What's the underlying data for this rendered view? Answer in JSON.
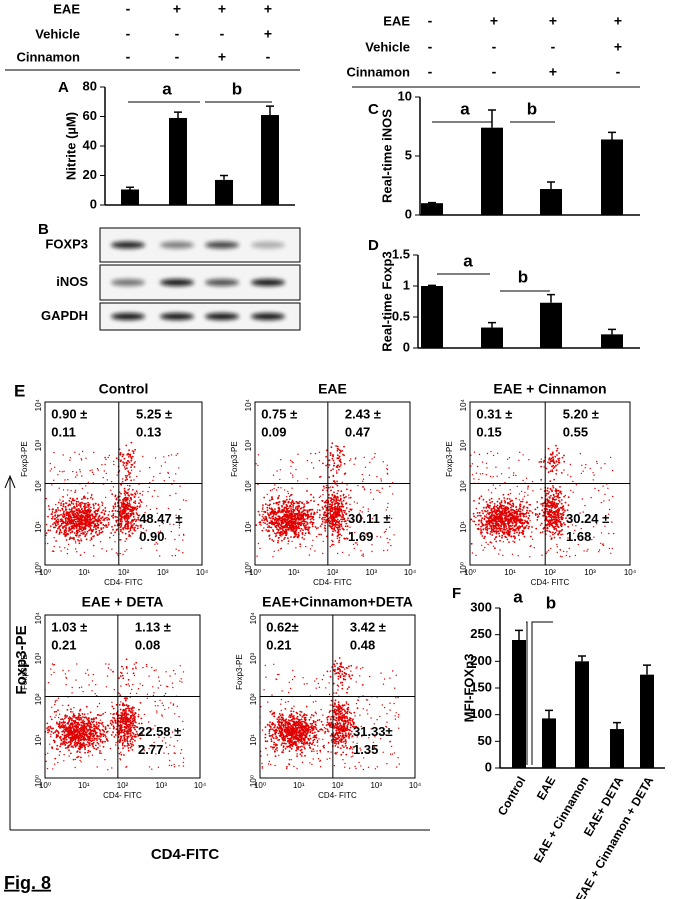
{
  "figure_label": "Fig. 8",
  "treatment_headers": [
    {
      "label": "EAE",
      "values": [
        "-",
        "+",
        "+",
        "+"
      ]
    },
    {
      "label": "Vehicle",
      "values": [
        "-",
        "-",
        "-",
        "+"
      ]
    },
    {
      "label": "Cinnamon",
      "values": [
        "-",
        "-",
        "+",
        "-"
      ]
    }
  ],
  "chart_data": [
    {
      "type": "bar",
      "panel": "A",
      "y_label": "Nitrite (µM)",
      "values": [
        10.5,
        59,
        17,
        61
      ],
      "errors": [
        1.5,
        4,
        3,
        6
      ],
      "color": "#000000",
      "ylim": [
        0,
        80
      ],
      "yticks": [
        0,
        20,
        40,
        60,
        80
      ],
      "annotations": [
        "a",
        "b"
      ]
    },
    {
      "type": "bar",
      "panel": "C",
      "y_label": "Real-time iNOS",
      "values": [
        1.0,
        7.4,
        2.2,
        6.4
      ],
      "errors": [
        0.05,
        1.5,
        0.6,
        0.6
      ],
      "color": "#000000",
      "ylim": [
        0,
        10
      ],
      "yticks": [
        0,
        5,
        10
      ],
      "annotations": [
        "a",
        "b"
      ]
    },
    {
      "type": "bar",
      "panel": "D",
      "y_label": "Real-time Foxp3",
      "values": [
        1.0,
        0.33,
        0.73,
        0.22
      ],
      "errors": [
        0.01,
        0.08,
        0.13,
        0.08
      ],
      "color": "#000000",
      "ylim": [
        0,
        1.5
      ],
      "yticks": [
        0,
        0.5,
        1,
        1.5
      ],
      "annotations": [
        "a",
        "b"
      ]
    },
    {
      "type": "bar",
      "panel": "F",
      "y_label": "MFI-FOXp3",
      "categories": [
        "Control",
        "EAE",
        "EAE + Cinnamon",
        "EAE+ DETA",
        "EAE + Cinnamon + DETA"
      ],
      "values": [
        240,
        93,
        200,
        73,
        175
      ],
      "errors": [
        18,
        15,
        10,
        12,
        18
      ],
      "color": "#000000",
      "ylim": [
        0,
        300
      ],
      "yticks": [
        0,
        50,
        100,
        150,
        200,
        250,
        300
      ],
      "annotations": [
        "a",
        "b"
      ]
    }
  ],
  "blot": {
    "panel": "B",
    "rows": [
      "FOXP3",
      "iNOS",
      "GAPDH"
    ]
  },
  "flow": {
    "panel": "E",
    "y_title": "Foxp3-PE",
    "x_title": "CD4-FITC",
    "plot_y_label": "Foxp3-PE",
    "plot_x_label": "CD4- FITC",
    "decade_ticks": [
      "10⁰",
      "10¹",
      "10²",
      "10³",
      "10⁴"
    ],
    "plots": [
      {
        "title": "Control",
        "ul": [
          "0.90 ±",
          "0.11"
        ],
        "ur": [
          "5.25 ±",
          "0.13"
        ],
        "lr": [
          "48.47 ±",
          "0.90"
        ]
      },
      {
        "title": "EAE",
        "ul": [
          "0.75 ±",
          "0.09"
        ],
        "ur": [
          "2.43 ±",
          "0.47"
        ],
        "lr": [
          "30.11 ±",
          "1.69"
        ]
      },
      {
        "title": "EAE + Cinnamon",
        "ul": [
          "0.31 ±",
          "0.15"
        ],
        "ur": [
          "5.20 ±",
          "0.55"
        ],
        "lr": [
          "30.24 ±",
          "1.68"
        ]
      },
      {
        "title": "EAE + DETA",
        "ul": [
          "1.03 ±",
          "0.21"
        ],
        "ur": [
          "1.13 ±",
          "0.08"
        ],
        "lr": [
          "22.58 ±",
          "2.77"
        ]
      },
      {
        "title": "EAE+Cinnamon+DETA",
        "ul": [
          "0.62±",
          "0.21"
        ],
        "ur": [
          "3.42 ±",
          "0.48"
        ],
        "lr": [
          "31.33±",
          "1.35"
        ]
      }
    ]
  }
}
